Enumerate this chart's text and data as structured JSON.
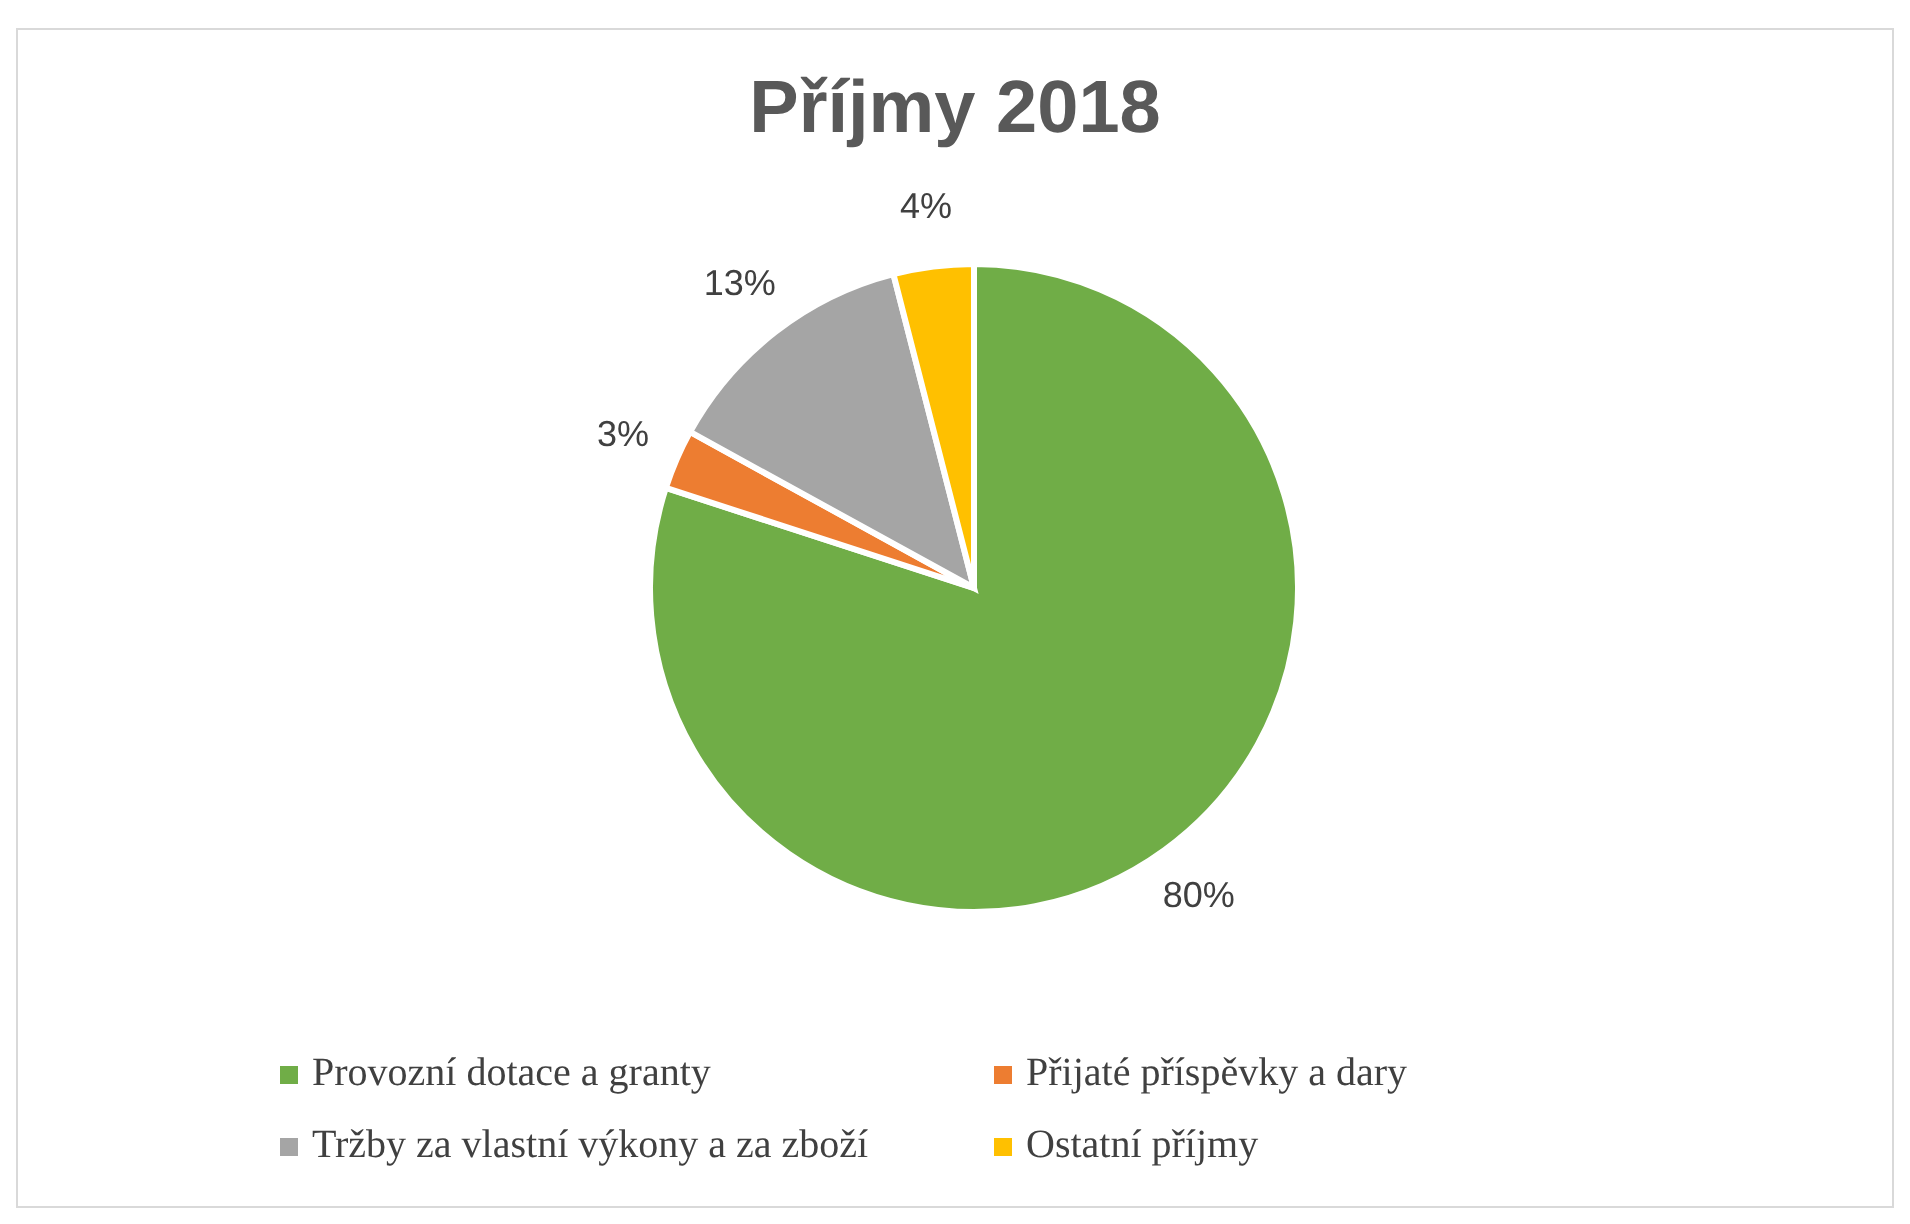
{
  "chart_data": {
    "type": "pie",
    "title": "Příjmy 2018",
    "categories": [
      "Provozní dotace a granty",
      "Přijaté příspěvky a dary",
      "Tržby za vlastní výkony a za zboží",
      "Ostatní příjmy"
    ],
    "values": [
      80,
      3,
      13,
      4
    ],
    "colors": [
      "#70ad47",
      "#ed7d31",
      "#a5a5a5",
      "#ffc000"
    ],
    "value_labels": [
      "80%",
      "3%",
      "13%",
      "4%"
    ],
    "legend": "bottom"
  }
}
